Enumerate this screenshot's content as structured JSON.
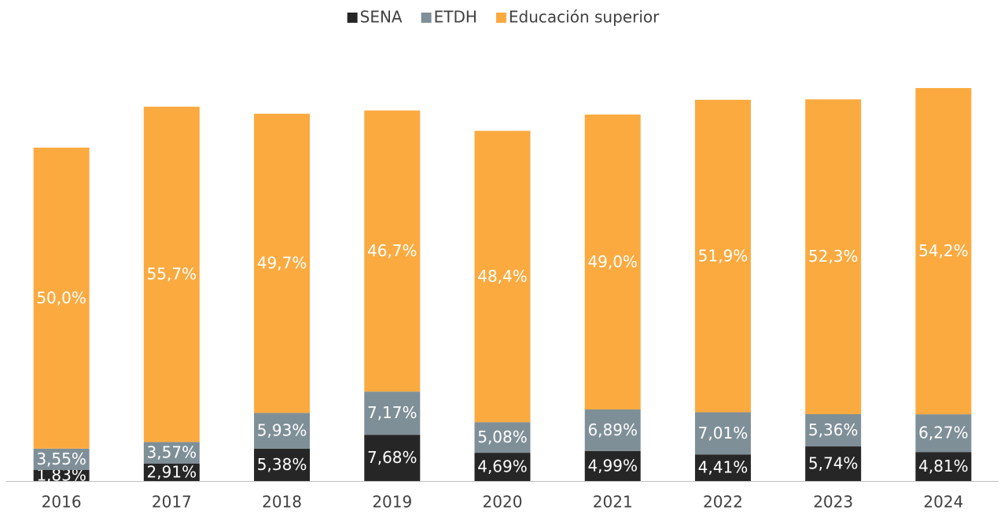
{
  "chart_data": {
    "type": "bar",
    "stacked": true,
    "categories": [
      "2016",
      "2017",
      "2018",
      "2019",
      "2020",
      "2021",
      "2022",
      "2023",
      "2024"
    ],
    "series": [
      {
        "name": "SENA",
        "color": "#262626",
        "values": [
          1.83,
          2.91,
          5.38,
          7.68,
          4.69,
          4.99,
          4.41,
          5.74,
          4.81
        ],
        "value_labels": [
          "1,83%",
          "2,91%",
          "5,38%",
          "7,68%",
          "4,69%",
          "4,99%",
          "4,41%",
          "5,74%",
          "4,81%"
        ]
      },
      {
        "name": "ETDH",
        "color": "#7f8f98",
        "values": [
          3.55,
          3.57,
          5.93,
          7.17,
          5.08,
          6.89,
          7.01,
          5.36,
          6.27
        ],
        "value_labels": [
          "3,55%",
          "3,57%",
          "5,93%",
          "7,17%",
          "5,08%",
          "6,89%",
          "7,01%",
          "5,36%",
          "6,27%"
        ]
      },
      {
        "name": "Educación superior",
        "color": "#fbaa40",
        "values": [
          50.0,
          55.7,
          49.7,
          46.7,
          48.4,
          49.0,
          51.9,
          52.3,
          54.2
        ],
        "value_labels": [
          "50,0%",
          "55,7%",
          "49,7%",
          "46,7%",
          "48,4%",
          "49,0%",
          "51,9%",
          "52,3%",
          "54,2%"
        ]
      }
    ],
    "legend": "top"
  }
}
